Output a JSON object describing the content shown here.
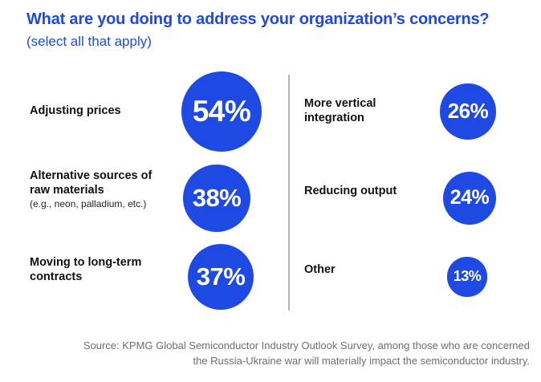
{
  "title": "What are you doing to address your organization’s concerns?",
  "subtitle": "(select all that apply)",
  "chart_data": {
    "type": "bubble",
    "unit": "%",
    "items": [
      {
        "label_lines": [
          "Adjusting prices"
        ],
        "note": "",
        "value": 54,
        "display": "54%"
      },
      {
        "label_lines": [
          "Alternative sources of",
          "raw materials"
        ],
        "note": "(e.g., neon, palladium, etc.)",
        "value": 38,
        "display": "38%"
      },
      {
        "label_lines": [
          "Moving to long-term",
          "contracts"
        ],
        "note": "",
        "value": 37,
        "display": "37%"
      },
      {
        "label_lines": [
          "More vertical",
          "integration"
        ],
        "note": "",
        "value": 26,
        "display": "26%"
      },
      {
        "label_lines": [
          "Reducing output"
        ],
        "note": "",
        "value": 24,
        "display": "24%"
      },
      {
        "label_lines": [
          "Other"
        ],
        "note": "",
        "value": 13,
        "display": "13%"
      }
    ],
    "bubble_color": "#1e49e2"
  },
  "source": {
    "line1": "Source: KPMG Global Semiconductor Industry Outlook Survey, among those who are concerned",
    "line2": "the Russia-Ukraine war will materially impact the semiconductor industry."
  }
}
